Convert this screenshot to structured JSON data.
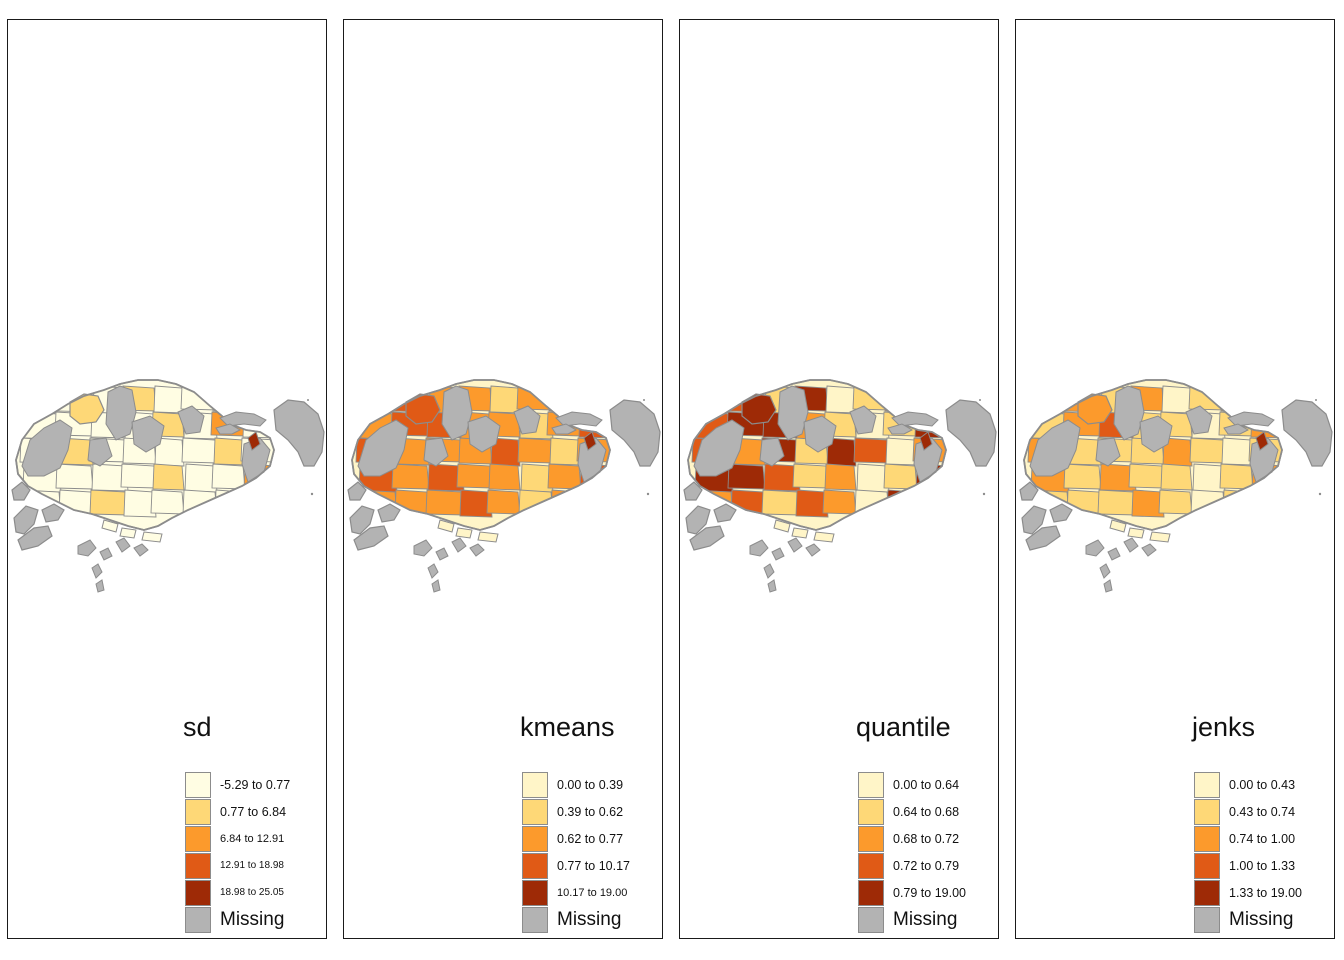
{
  "colors": {
    "classes": [
      "#fff5c8",
      "#fed877",
      "#fc9a2c",
      "#e05a16",
      "#9e2a06"
    ],
    "missing": "#b3b3b3",
    "border": "#8c8c8c"
  },
  "panels": [
    {
      "title": "sd",
      "legend": [
        "-5.29 to 0.77",
        "0.77 to 6.84",
        "6.84 to 12.91",
        "12.91 to 18.98",
        "18.98 to 25.05"
      ],
      "missing_label": "Missing",
      "first_class_color": "#fffde3"
    },
    {
      "title": "kmeans",
      "legend": [
        "0.00 to 0.39",
        "0.39 to 0.62",
        "0.62 to 0.77",
        "0.77 to 10.17",
        "10.17 to 19.00"
      ],
      "missing_label": "Missing"
    },
    {
      "title": "quantile",
      "legend": [
        "0.00 to 0.64",
        "0.64 to 0.68",
        "0.68 to 0.72",
        "0.72 to 0.79",
        "0.79 to 19.00"
      ],
      "missing_label": "Missing"
    },
    {
      "title": "jenks",
      "legend": [
        "0.00 to 0.43",
        "0.43 to 0.74",
        "0.74 to 1.00",
        "1.00 to 1.33",
        "1.33 to 19.00"
      ],
      "missing_label": "Missing"
    }
  ]
}
